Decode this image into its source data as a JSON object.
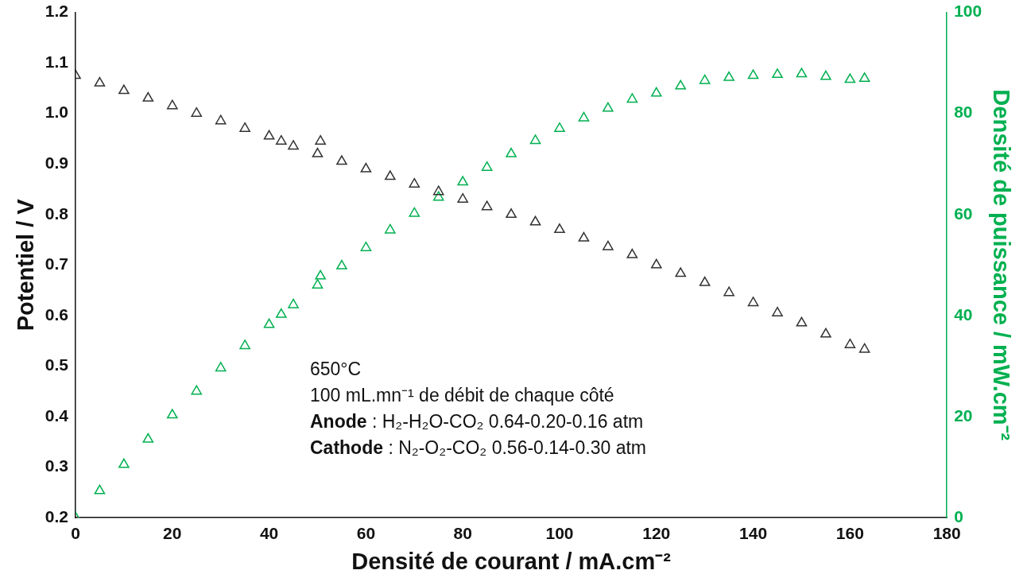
{
  "chart_data": {
    "type": "scatter",
    "xlabel": "Densité de courant / mA.cm⁻²",
    "ylabel": "Potentiel / V",
    "y2label": "Densité de puissance / mW.cm⁻²",
    "xlim": [
      0,
      180
    ],
    "xticks": [
      0,
      20,
      40,
      60,
      80,
      100,
      120,
      140,
      160,
      180
    ],
    "ylim": [
      0.2,
      1.2
    ],
    "yticks": [
      0.2,
      0.3,
      0.4,
      0.5,
      0.6,
      0.7,
      0.8,
      0.9,
      {
        "value": 1,
        "label": "1.0"
      },
      1.1,
      1.2
    ],
    "y2lim": [
      0,
      100
    ],
    "y2ticks": [
      0,
      20,
      40,
      60,
      80,
      100
    ],
    "x": [
      0,
      5,
      10,
      15,
      20,
      25,
      30,
      35,
      40,
      42.5,
      45,
      50,
      50.6,
      55,
      60,
      65,
      70,
      75,
      80,
      85,
      90,
      95,
      100,
      105,
      110,
      115,
      120,
      125,
      130,
      135,
      140,
      145,
      150,
      155,
      160,
      163
    ],
    "series": [
      {
        "color": "#333333",
        "values": [
          1.075,
          1.06,
          1.045,
          1.03,
          1.015,
          1.0,
          0.985,
          0.97,
          0.955,
          0.945,
          0.935,
          0.92,
          0.945,
          0.905,
          0.89,
          0.875,
          0.86,
          0.845,
          0.83,
          0.815,
          0.8,
          0.785,
          0.77,
          0.753,
          0.736,
          0.72,
          0.7,
          0.683,
          0.665,
          0.645,
          0.625,
          0.605,
          0.585,
          0.563,
          0.542,
          0.533
        ]
      },
      {
        "color": "#00b050",
        "axis": "y2",
        "values": [
          0,
          5.3,
          10.5,
          15.5,
          20.3,
          25,
          29.6,
          34,
          38.2,
          40.2,
          42.1,
          46,
          47.8,
          49.8,
          53.4,
          56.9,
          60.2,
          63.4,
          66.4,
          69.3,
          72,
          74.6,
          77,
          79.1,
          81,
          82.8,
          84,
          85.4,
          86.5,
          87.1,
          87.5,
          87.7,
          87.8,
          87.3,
          86.7,
          86.9
        ]
      }
    ],
    "marker": "triangle",
    "grid": false,
    "legend": false,
    "annotations": [
      "650°C",
      "100 mL.mn⁻¹ de débit de chaque côté",
      "Anode : H₂-H₂O-CO₂ 0.64-0.20-0.16 atm",
      "Cathode : N₂-O₂-CO₂ 0.56-0.14-0.30 atm"
    ]
  }
}
